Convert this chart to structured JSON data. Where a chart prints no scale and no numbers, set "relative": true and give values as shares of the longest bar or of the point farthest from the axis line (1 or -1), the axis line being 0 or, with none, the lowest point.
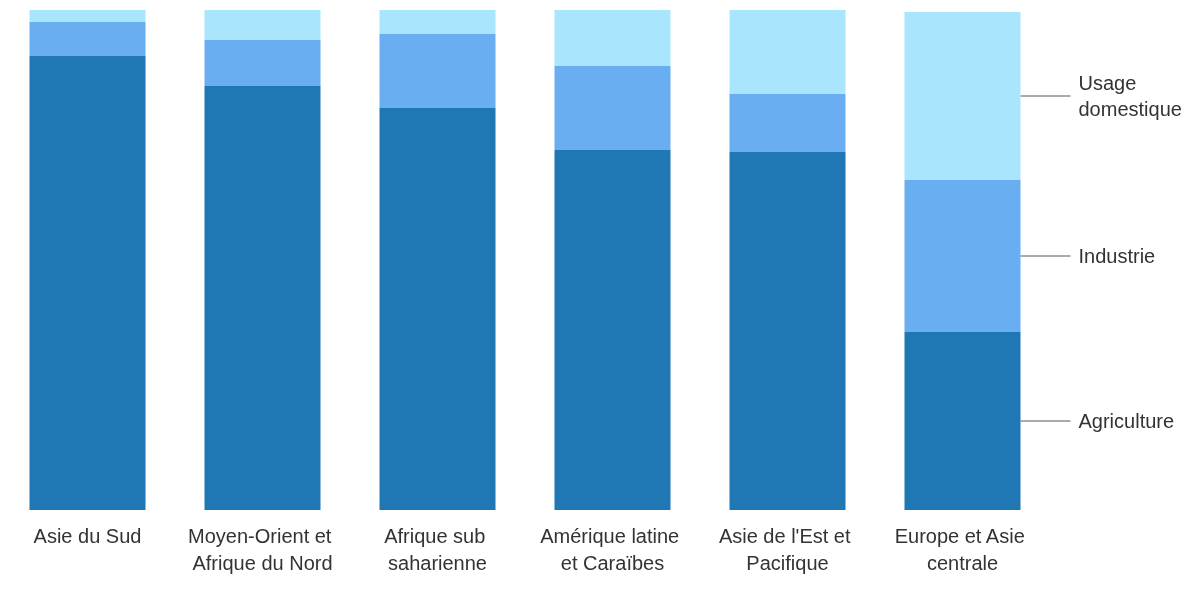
{
  "chart_data": {
    "type": "bar",
    "stacked": true,
    "relative": true,
    "categories": [
      "Asie du Sud",
      "Moyen-Orient et Afrique du Nord",
      "Afrique sub saharienne",
      "Amérique latine et Caraïbes",
      "Asie de l'Est et Pacifique",
      "Europe et Asie centrale"
    ],
    "series": [
      {
        "name": "Agriculture",
        "color": "#1f77b4",
        "values": [
          0.908,
          0.848,
          0.804,
          0.72,
          0.716,
          0.356
        ]
      },
      {
        "name": "Industrie",
        "color": "#69aef0",
        "values": [
          0.068,
          0.092,
          0.148,
          0.168,
          0.116,
          0.304
        ]
      },
      {
        "name": "Usage domestique",
        "color": "#a9e6fd",
        "values": [
          0.024,
          0.06,
          0.048,
          0.112,
          0.168,
          0.336
        ]
      }
    ],
    "legend": false
  }
}
